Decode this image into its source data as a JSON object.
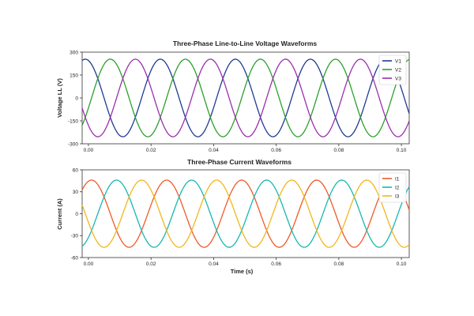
{
  "chart_data": [
    {
      "type": "line",
      "title": "Three-Phase Line-to-Line Voltage Waveforms",
      "xlabel": "",
      "ylabel": "Voltage LL (V)",
      "xlim": [
        -0.002,
        0.1025
      ],
      "ylim": [
        -300,
        300
      ],
      "xticks": [
        "0.00",
        "0.02",
        "0.04",
        "0.06",
        "0.08",
        "0.10"
      ],
      "xtick_values": [
        0,
        0.02,
        0.04,
        0.06,
        0.08,
        0.1
      ],
      "yticks": [
        "300",
        "150",
        "0",
        "-150",
        "-300"
      ],
      "ytick_values": [
        300,
        150,
        0,
        -150,
        -300
      ],
      "grid": false,
      "legend_position": "top-right",
      "waveform": {
        "kind": "sinusoid",
        "amplitude": 254,
        "frequency_hz": 41.7,
        "x_start": -0.002,
        "x_end": 0.1025
      },
      "series": [
        {
          "name": "V1",
          "phase_deg": 105,
          "color": "#1f3a93"
        },
        {
          "name": "V2",
          "phase_deg": -15,
          "color": "#2ca02c"
        },
        {
          "name": "V3",
          "phase_deg": -135,
          "color": "#9b2fae"
        }
      ]
    },
    {
      "type": "line",
      "title": "Three-Phase Current Waveforms",
      "xlabel": "Time (s)",
      "ylabel": "Current (A)",
      "xlim": [
        -0.002,
        0.1025
      ],
      "ylim": [
        -60,
        60
      ],
      "xticks": [
        "0.00",
        "0.02",
        "0.04",
        "0.06",
        "0.08",
        "0.10"
      ],
      "xtick_values": [
        0,
        0.02,
        0.04,
        0.06,
        0.08,
        0.1
      ],
      "yticks": [
        "60",
        "30",
        "0",
        "-30",
        "-60"
      ],
      "ytick_values": [
        60,
        30,
        0,
        -30,
        -60
      ],
      "grid": false,
      "legend_position": "top-right",
      "waveform": {
        "kind": "sinusoid",
        "amplitude": 46,
        "frequency_hz": 41.7,
        "x_start": -0.002,
        "x_end": 0.1025
      },
      "series": [
        {
          "name": "I1",
          "phase_deg": 75,
          "color": "#f05a28"
        },
        {
          "name": "I2",
          "phase_deg": -45,
          "color": "#17b8b0"
        },
        {
          "name": "I3",
          "phase_deg": -165,
          "color": "#f2b61e"
        }
      ]
    }
  ]
}
